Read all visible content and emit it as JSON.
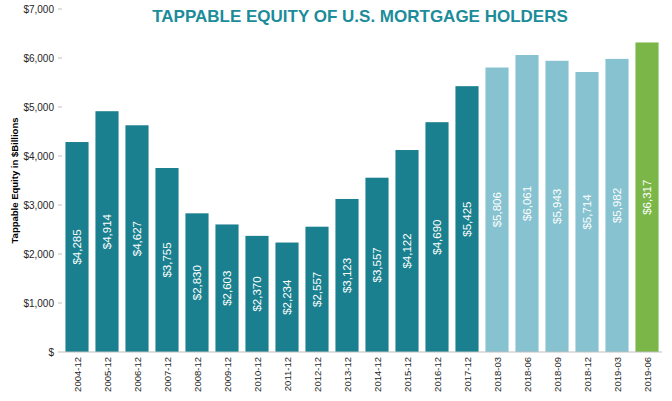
{
  "chart_data": {
    "type": "bar",
    "title": "TAPPABLE EQUITY OF U.S. MORTGAGE HOLDERS",
    "ylabel": "Tappable Equity in $Billions",
    "categories": [
      "2004-12",
      "2005-12",
      "2006-12",
      "2007-12",
      "2008-12",
      "2009-12",
      "2010-12",
      "2011-12",
      "2012-12",
      "2013-12",
      "2014-12",
      "2015-12",
      "2016-12",
      "2017-12",
      "2018-03",
      "2018-06",
      "2018-09",
      "2018-12",
      "2019-03",
      "2019-06"
    ],
    "values": [
      4285,
      4914,
      4627,
      3755,
      2830,
      2603,
      2370,
      2234,
      2557,
      3123,
      3557,
      4122,
      4690,
      5425,
      5806,
      6061,
      5943,
      5714,
      5982,
      6317
    ],
    "value_labels": [
      "$4,285",
      "$4,914",
      "$4,627",
      "$3,755",
      "$2,830",
      "$2,603",
      "$2,370",
      "$2,234",
      "$2,557",
      "$3,123",
      "$3,557",
      "$4,122",
      "$4,690",
      "$5,425",
      "$5,806",
      "$6,061",
      "$5,943",
      "$5,714",
      "$5,982",
      "$6,317"
    ],
    "colors": [
      "#1a7f8e",
      "#1a7f8e",
      "#1a7f8e",
      "#1a7f8e",
      "#1a7f8e",
      "#1a7f8e",
      "#1a7f8e",
      "#1a7f8e",
      "#1a7f8e",
      "#1a7f8e",
      "#1a7f8e",
      "#1a7f8e",
      "#1a7f8e",
      "#1a7f8e",
      "#86c2cf",
      "#86c2cf",
      "#86c2cf",
      "#86c2cf",
      "#86c2cf",
      "#7ab648"
    ],
    "ylim": [
      0,
      7000
    ],
    "yticks": [
      {
        "value": 0,
        "label": "$"
      },
      {
        "value": 1000,
        "label": "$1,000"
      },
      {
        "value": 2000,
        "label": "$2,000"
      },
      {
        "value": 3000,
        "label": "$3,000"
      },
      {
        "value": 4000,
        "label": "$4,000"
      },
      {
        "value": 5000,
        "label": "$5,000"
      },
      {
        "value": 6000,
        "label": "$6,000"
      },
      {
        "value": 7000,
        "label": "$7,000"
      }
    ],
    "grid": false,
    "data_labels": true
  }
}
